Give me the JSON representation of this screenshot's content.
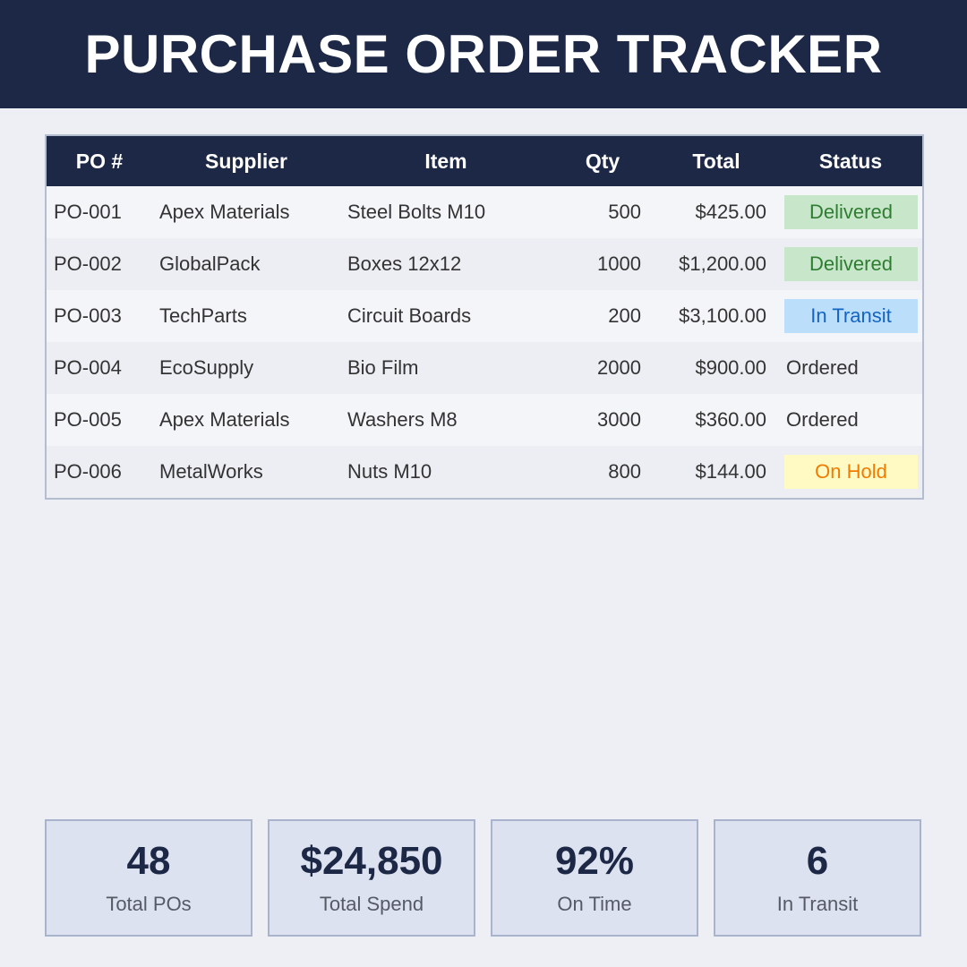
{
  "title": "PURCHASE ORDER TRACKER",
  "table": {
    "columns": [
      "PO #",
      "Supplier",
      "Item",
      "Qty",
      "Total",
      "Status"
    ],
    "rows": [
      {
        "po": "PO-001",
        "supplier": "Apex Materials",
        "item": "Steel Bolts M10",
        "qty": "500",
        "total": "$425.00",
        "status": "Delivered",
        "status_bg": "#c8e6c9",
        "status_fg": "#2e7d32"
      },
      {
        "po": "PO-002",
        "supplier": "GlobalPack",
        "item": "Boxes 12x12",
        "qty": "1000",
        "total": "$1,200.00",
        "status": "Delivered",
        "status_bg": "#c8e6c9",
        "status_fg": "#2e7d32"
      },
      {
        "po": "PO-003",
        "supplier": "TechParts",
        "item": "Circuit Boards",
        "qty": "200",
        "total": "$3,100.00",
        "status": "In Transit",
        "status_bg": "#bbdefb",
        "status_fg": "#1565c0"
      },
      {
        "po": "PO-004",
        "supplier": "EcoSupply",
        "item": "Bio Film",
        "qty": "2000",
        "total": "$900.00",
        "status": "Ordered",
        "status_bg": "",
        "status_fg": "#333333"
      },
      {
        "po": "PO-005",
        "supplier": "Apex Materials",
        "item": "Washers M8",
        "qty": "3000",
        "total": "$360.00",
        "status": "Ordered",
        "status_bg": "",
        "status_fg": "#333333"
      },
      {
        "po": "PO-006",
        "supplier": "MetalWorks",
        "item": "Nuts M10",
        "qty": "800",
        "total": "$144.00",
        "status": "On Hold",
        "status_bg": "#fff9c4",
        "status_fg": "#ef7c00"
      }
    ]
  },
  "stats": [
    {
      "value": "48",
      "label": "Total POs"
    },
    {
      "value": "$24,850",
      "label": "Total Spend"
    },
    {
      "value": "92%",
      "label": "On Time"
    },
    {
      "value": "6",
      "label": "In Transit"
    }
  ]
}
